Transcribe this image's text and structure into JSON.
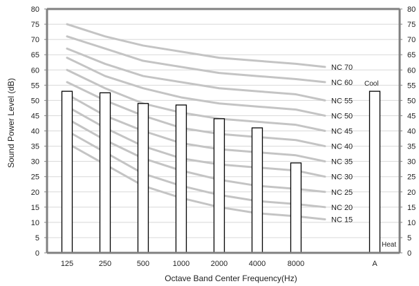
{
  "chart_data": {
    "type": "bar",
    "xlabel": "Octave Band Center Frequency(Hz)",
    "ylabel": "Sound Power Level (dB)",
    "ylim": [
      0,
      80
    ],
    "yticks": [
      0,
      5,
      10,
      15,
      20,
      25,
      30,
      35,
      40,
      45,
      50,
      55,
      60,
      65,
      70,
      75,
      80
    ],
    "grid": true,
    "categories": [
      "125",
      "250",
      "500",
      "1000",
      "2000",
      "4000",
      "8000",
      "A"
    ],
    "values": [
      53,
      52.5,
      49,
      48.5,
      44,
      41,
      29.5,
      53
    ],
    "nc_curves": [
      {
        "name": "NC 15",
        "values": [
          36,
          29,
          22,
          18,
          15,
          13,
          12,
          11
        ]
      },
      {
        "name": "NC 20",
        "values": [
          40,
          33,
          26,
          22,
          19,
          17,
          16,
          15
        ]
      },
      {
        "name": "NC 25",
        "values": [
          44,
          37,
          31,
          27,
          24,
          22,
          21,
          20
        ]
      },
      {
        "name": "NC 30",
        "values": [
          48,
          41,
          35,
          31,
          29,
          28,
          27,
          25
        ]
      },
      {
        "name": "NC 35",
        "values": [
          52,
          45,
          40,
          36,
          34,
          33,
          32,
          30
        ]
      },
      {
        "name": "NC 40",
        "values": [
          56,
          50,
          45,
          41,
          39,
          38,
          37,
          35
        ]
      },
      {
        "name": "NC 45",
        "values": [
          60,
          54,
          49,
          46,
          44,
          43,
          42,
          40
        ]
      },
      {
        "name": "NC 50",
        "values": [
          64,
          58,
          54,
          51,
          49,
          48,
          47,
          45
        ]
      },
      {
        "name": "NC 55",
        "values": [
          67,
          62,
          58,
          56,
          54,
          53,
          52,
          50
        ]
      },
      {
        "name": "NC 60",
        "values": [
          71,
          67,
          63,
          61,
          59,
          58,
          57,
          56
        ]
      },
      {
        "name": "NC 70",
        "values": [
          75,
          71,
          68,
          66,
          64,
          63,
          62,
          61
        ]
      }
    ],
    "annotations": [
      "Cool",
      "Heat"
    ]
  },
  "colors": {
    "curve": "#c4c4c4",
    "bar_fill": "#ffffff",
    "bar_stroke": "#000000",
    "grid": "#d8d8d8",
    "axis": "#808080"
  }
}
